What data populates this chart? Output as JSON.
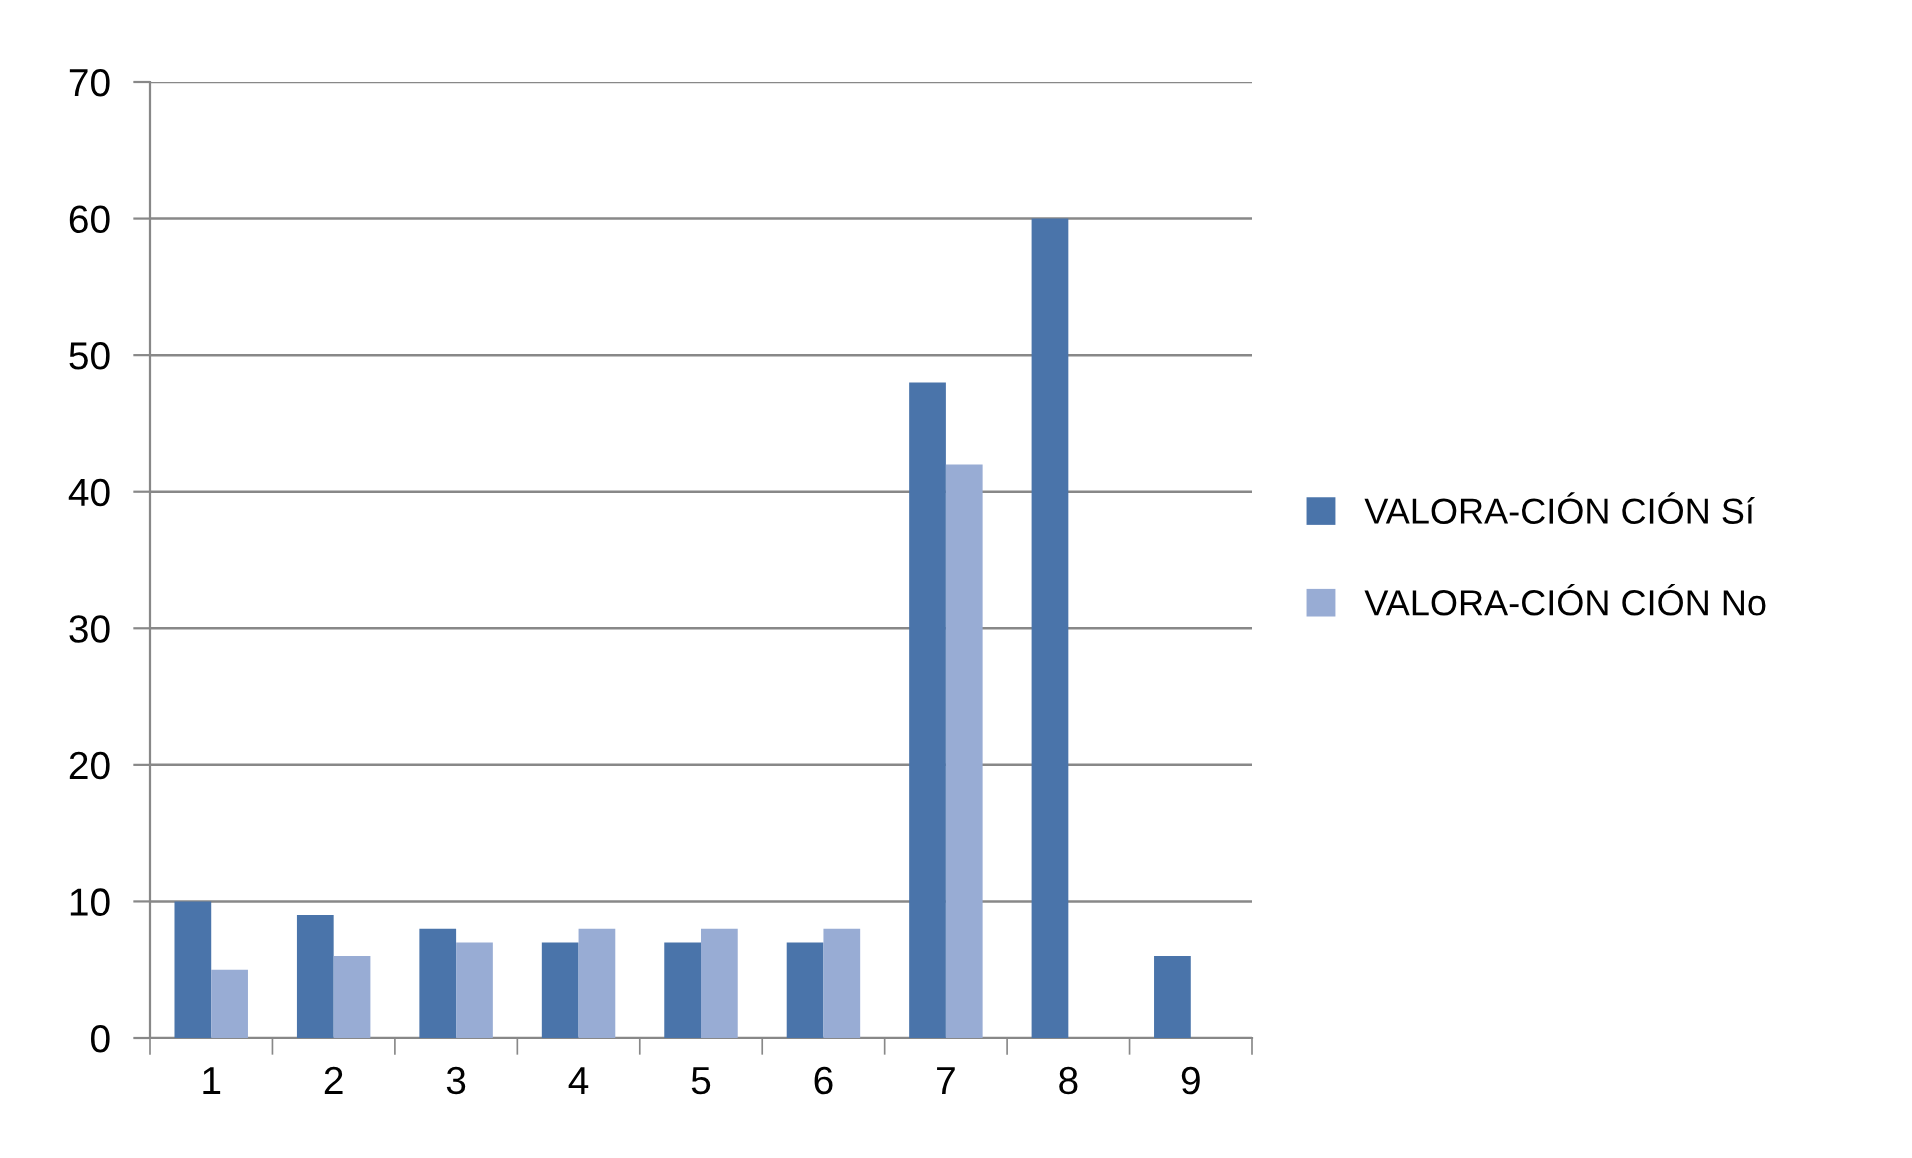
{
  "chart_data": {
    "type": "bar",
    "categories": [
      "1",
      "2",
      "3",
      "4",
      "5",
      "6",
      "7",
      "8",
      "9"
    ],
    "series": [
      {
        "name": "VALORA-CIÓN CIÓN Sí",
        "color": "#4a74aa",
        "values": [
          10,
          9,
          8,
          7,
          7,
          7,
          48,
          60,
          6
        ]
      },
      {
        "name": "VALORA-CIÓN CIÓN No",
        "color": "#98acd4",
        "values": [
          5,
          6,
          7,
          8,
          8,
          8,
          42,
          null,
          null
        ]
      }
    ],
    "ylim": [
      0,
      70
    ],
    "yticks": [
      0,
      10,
      20,
      30,
      40,
      50,
      60,
      70
    ],
    "grid": "y",
    "legend": "right"
  }
}
